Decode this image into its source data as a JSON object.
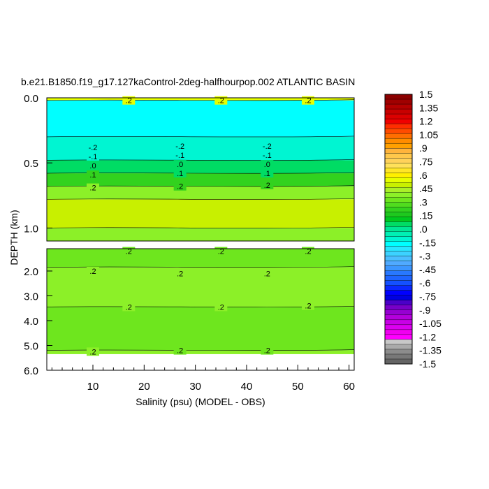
{
  "chart_data": {
    "type": "heatmap",
    "title": "b.e21.B1850.f19_g17.127kaControl-2deg-halfhourpop.002 ATLANTIC BASIN",
    "xlabel": "Salinity (psu) (MODEL - OBS)",
    "ylabel": "DEPTH (km)",
    "xlim": [
      1,
      61
    ],
    "x_ticks": [
      "10",
      "20",
      "30",
      "40",
      "50",
      "60"
    ],
    "y_ticks_upper": [
      "0.0",
      "0.5",
      "1.0"
    ],
    "y_ticks_lower": [
      "2.0",
      "3.0",
      "4.0",
      "5.0",
      "6.0"
    ],
    "upper_panel_ylim": [
      0.0,
      1.1
    ],
    "lower_panel_ylim": [
      1.1,
      6.0
    ],
    "colorbar": {
      "labels": [
        "1.5",
        "1.35",
        "1.2",
        "1.05",
        ".9",
        ".75",
        ".6",
        ".45",
        ".3",
        ".15",
        ".0",
        "-.15",
        "-.3",
        "-.45",
        "-.6",
        "-.75",
        "-.9",
        "-1.05",
        "-1.2",
        "-1.35",
        "-1.5"
      ],
      "colors": [
        "#8b0000",
        "#a00000",
        "#b40000",
        "#c80000",
        "#dc0000",
        "#f00000",
        "#ff2d00",
        "#ff4b00",
        "#ff6e00",
        "#ff8c00",
        "#ffa000",
        "#ffb43c",
        "#ffc84b",
        "#ffd25a",
        "#ffe15a",
        "#ffe628",
        "#fff000",
        "#e6ff00",
        "#c8f000",
        "#aaf028",
        "#8cf028",
        "#6ee61e",
        "#50dc1e",
        "#32d21e",
        "#1ec81e",
        "#00c81e",
        "#00dc64",
        "#00e696",
        "#00f0b4",
        "#00f5d2",
        "#00ffff",
        "#28e6ff",
        "#3cd2ff",
        "#4bbeff",
        "#50aaff",
        "#3c96ff",
        "#2878ff",
        "#1e64ff",
        "#1450ff",
        "#0a28ff",
        "#0000ff",
        "#0000e1",
        "#4b00c8",
        "#7800c8",
        "#9600d2",
        "#b400dc",
        "#c800e6",
        "#dc00f0",
        "#f000f0",
        "#ff00ff",
        "#c8c8c8",
        "#aaaaaa",
        "#8c8c8c",
        "#787878",
        "#646464"
      ]
    },
    "bands_upper": [
      {
        "depth_range": [
          0.0,
          0.02
        ],
        "color": "#e6ff00"
      },
      {
        "depth_range": [
          0.02,
          0.3
        ],
        "color": "#00ffff"
      },
      {
        "depth_range": [
          0.3,
          0.48
        ],
        "color": "#00f5d2"
      },
      {
        "depth_range": [
          0.48,
          0.58
        ],
        "color": "#00dc64"
      },
      {
        "depth_range": [
          0.58,
          0.68
        ],
        "color": "#32d21e"
      },
      {
        "depth_range": [
          0.68,
          0.78
        ],
        "color": "#8cf028"
      },
      {
        "depth_range": [
          0.78,
          1.0
        ],
        "color": "#c8f000"
      },
      {
        "depth_range": [
          1.0,
          1.1
        ],
        "color": "#8cf028"
      }
    ],
    "bands_lower": [
      {
        "depth_range": [
          1.1,
          1.85
        ],
        "color": "#6ee61e"
      },
      {
        "depth_range": [
          1.85,
          3.45
        ],
        "color": "#8cf028"
      },
      {
        "depth_range": [
          3.45,
          5.2
        ],
        "color": "#6ee61e"
      },
      {
        "depth_range": [
          5.2,
          5.35
        ],
        "color": "#8cf028"
      }
    ],
    "contour_labels_upper": [
      {
        "x": 17,
        "depth": 0.02,
        "text": ".2"
      },
      {
        "x": 35,
        "depth": 0.02,
        "text": ".2"
      },
      {
        "x": 52,
        "depth": 0.02,
        "text": ".2"
      },
      {
        "x": 10,
        "depth": 0.38,
        "text": "-.2"
      },
      {
        "x": 27,
        "depth": 0.37,
        "text": "-.2"
      },
      {
        "x": 44,
        "depth": 0.37,
        "text": "-.2"
      },
      {
        "x": 10,
        "depth": 0.45,
        "text": "-.1"
      },
      {
        "x": 27,
        "depth": 0.44,
        "text": "-.1"
      },
      {
        "x": 44,
        "depth": 0.44,
        "text": "-.1"
      },
      {
        "x": 10,
        "depth": 0.52,
        "text": ".0"
      },
      {
        "x": 27,
        "depth": 0.51,
        "text": ".0"
      },
      {
        "x": 44,
        "depth": 0.51,
        "text": ".0"
      },
      {
        "x": 10,
        "depth": 0.59,
        "text": ".1"
      },
      {
        "x": 27,
        "depth": 0.58,
        "text": ".1"
      },
      {
        "x": 44,
        "depth": 0.58,
        "text": ".1"
      },
      {
        "x": 10,
        "depth": 0.69,
        "text": ".2"
      },
      {
        "x": 27,
        "depth": 0.68,
        "text": ".2"
      },
      {
        "x": 44,
        "depth": 0.67,
        "text": ".2"
      }
    ],
    "contour_labels_lower": [
      {
        "x": 17,
        "depth": 1.2,
        "text": ".2"
      },
      {
        "x": 35,
        "depth": 1.2,
        "text": ".2"
      },
      {
        "x": 52,
        "depth": 1.2,
        "text": ".2"
      },
      {
        "x": 10,
        "depth": 2.0,
        "text": ".2"
      },
      {
        "x": 27,
        "depth": 2.1,
        "text": ".2"
      },
      {
        "x": 44,
        "depth": 2.1,
        "text": ".2"
      },
      {
        "x": 17,
        "depth": 3.45,
        "text": ".2"
      },
      {
        "x": 35,
        "depth": 3.45,
        "text": ".2"
      },
      {
        "x": 52,
        "depth": 3.4,
        "text": ".2"
      },
      {
        "x": 10,
        "depth": 5.25,
        "text": ".2"
      },
      {
        "x": 27,
        "depth": 5.2,
        "text": ".2"
      },
      {
        "x": 44,
        "depth": 5.2,
        "text": ".2"
      }
    ]
  }
}
